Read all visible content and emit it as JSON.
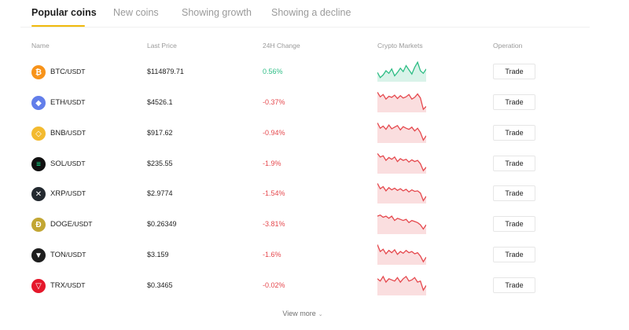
{
  "tabs": [
    {
      "label": "Popular coins",
      "active": true
    },
    {
      "label": "New coins",
      "active": false
    },
    {
      "label": "Showing growth",
      "active": false
    },
    {
      "label": "Showing a decline",
      "active": false
    }
  ],
  "columns": {
    "name": "Name",
    "price": "Last Price",
    "change": "24H Change",
    "markets": "Crypto Markets",
    "operation": "Operation"
  },
  "rows": [
    {
      "base": "BTC",
      "quote": "/USDT",
      "price": "$114879.71",
      "change": "0.56%",
      "direction": "up",
      "icon": "bitcoin-icon",
      "color": "#f7931a",
      "spark": [
        58,
        52,
        55,
        60,
        57,
        62,
        54,
        58,
        63,
        59,
        66,
        61,
        56,
        64,
        70,
        60,
        57,
        62
      ]
    },
    {
      "base": "ETH",
      "quote": "/USDT",
      "price": "$4526.1",
      "change": "-0.37%",
      "direction": "down",
      "icon": "ethereum-icon",
      "color": "#627eea",
      "spark": [
        70,
        62,
        66,
        58,
        63,
        61,
        65,
        59,
        64,
        60,
        62,
        66,
        58,
        61,
        67,
        60,
        40,
        45
      ]
    },
    {
      "base": "BNB",
      "quote": "/USDT",
      "price": "$917.62",
      "change": "-0.94%",
      "direction": "down",
      "icon": "bnb-icon",
      "color": "#f3ba2f",
      "spark": [
        70,
        60,
        64,
        58,
        66,
        59,
        62,
        65,
        57,
        63,
        60,
        58,
        62,
        55,
        60,
        52,
        38,
        46
      ]
    },
    {
      "base": "SOL",
      "quote": "/USDT",
      "price": "$235.55",
      "change": "-1.9%",
      "direction": "down",
      "icon": "solana-icon",
      "color": "#111111",
      "spark": [
        72,
        66,
        68,
        60,
        65,
        62,
        66,
        58,
        63,
        60,
        62,
        57,
        61,
        58,
        60,
        54,
        42,
        48
      ]
    },
    {
      "base": "XRP",
      "quote": "/USDT",
      "price": "$2.9774",
      "change": "-1.54%",
      "direction": "down",
      "icon": "xrp-icon",
      "color": "#23292f",
      "spark": [
        72,
        62,
        66,
        58,
        64,
        60,
        63,
        59,
        62,
        58,
        61,
        56,
        60,
        57,
        58,
        54,
        40,
        48
      ]
    },
    {
      "base": "DOGE",
      "quote": "/USDT",
      "price": "$0.26349",
      "change": "-3.81%",
      "direction": "down",
      "icon": "dogecoin-icon",
      "color": "#c2a633",
      "spark": [
        66,
        67,
        65,
        66,
        64,
        66,
        62,
        64,
        63,
        62,
        63,
        60,
        62,
        61,
        60,
        58,
        54,
        58
      ]
    },
    {
      "base": "TON",
      "quote": "/USDT",
      "price": "$3.159",
      "change": "-1.6%",
      "direction": "down",
      "icon": "ton-icon",
      "color": "#1e1e1e",
      "spark": [
        72,
        60,
        64,
        56,
        62,
        58,
        63,
        55,
        60,
        57,
        62,
        58,
        60,
        56,
        58,
        52,
        42,
        50
      ]
    },
    {
      "base": "TRX",
      "quote": "/USDT",
      "price": "$0.3465",
      "change": "-0.02%",
      "direction": "down",
      "icon": "tron-icon",
      "color": "#e5182b",
      "spark": [
        60,
        58,
        62,
        57,
        60,
        59,
        58,
        61,
        57,
        60,
        62,
        58,
        59,
        61,
        57,
        58,
        50,
        54
      ]
    }
  ],
  "trade_label": "Trade",
  "view_more": "View more",
  "colors": {
    "up": "#2ebd85",
    "down": "#e5484d",
    "accent": "#f0b90b"
  }
}
